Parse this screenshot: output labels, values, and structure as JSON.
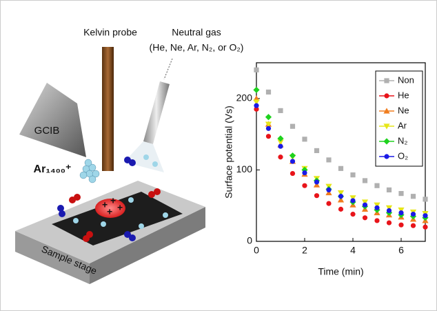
{
  "diagram": {
    "labels": {
      "probe": "Kelvin probe",
      "gas": "Neutral gas",
      "gas_list": "(He, Ne, Ar, N₂, or O₂)",
      "gun": "GCIB",
      "cluster": "Ar₁₄₀₀⁺",
      "stage": "Sample stage"
    }
  },
  "chart_data": {
    "type": "scatter",
    "x_label": "Time (min)",
    "y_label": "Surface potential (Vs)",
    "x": [
      0,
      0.5,
      1,
      1.5,
      2,
      2.5,
      3,
      3.5,
      4,
      4.5,
      5,
      5.5,
      6,
      6.5,
      7
    ],
    "series": [
      {
        "name": "Non",
        "color": "#b0b0b0",
        "marker": "square",
        "values": [
          240,
          209,
          183,
          161,
          143,
          127,
          114,
          102,
          93,
          85,
          78,
          72,
          67,
          63,
          59
        ]
      },
      {
        "name": "He",
        "color": "#e8141a",
        "marker": "circle",
        "values": [
          185,
          147,
          118,
          95,
          78,
          64,
          53,
          45,
          38,
          33,
          29,
          26,
          23,
          22,
          20
        ]
      },
      {
        "name": "Ne",
        "color": "#f07d1e",
        "marker": "triangle",
        "values": [
          200,
          164,
          135,
          112,
          94,
          79,
          68,
          58,
          51,
          45,
          40,
          37,
          34,
          31,
          29
        ]
      },
      {
        "name": "Ar",
        "color": "#e6e61a",
        "marker": "down-triangle",
        "values": [
          195,
          164,
          139,
          118,
          102,
          88,
          77,
          68,
          61,
          55,
          51,
          47,
          44,
          41,
          39
        ]
      },
      {
        "name": "N₂",
        "color": "#1ed21e",
        "marker": "diamond",
        "values": [
          212,
          174,
          144,
          120,
          100,
          85,
          73,
          63,
          55,
          49,
          44,
          40,
          37,
          35,
          33
        ]
      },
      {
        "name": "O₂",
        "color": "#1a1ae6",
        "marker": "circle",
        "values": [
          190,
          158,
          133,
          112,
          96,
          83,
          72,
          63,
          57,
          51,
          47,
          43,
          40,
          38,
          36
        ]
      }
    ],
    "xlim": [
      0,
      7
    ],
    "xticks": [
      0,
      2,
      4,
      6
    ],
    "ylim": [
      0,
      250
    ],
    "yticks": [
      0,
      100,
      200
    ],
    "legend": "upper-right"
  }
}
